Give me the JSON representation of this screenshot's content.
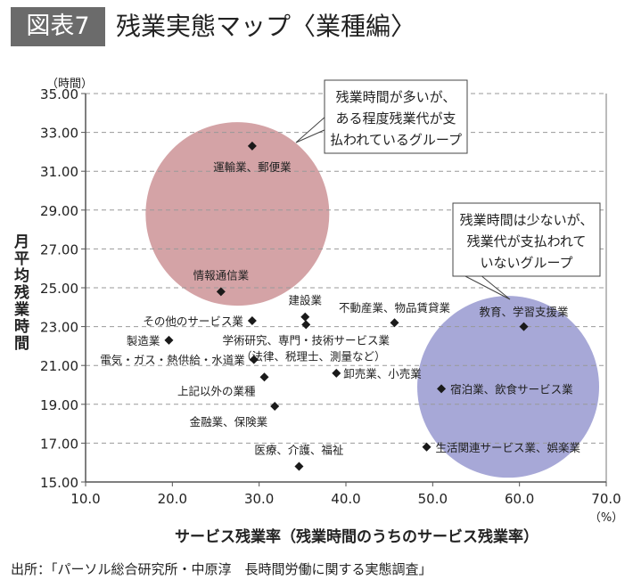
{
  "header": {
    "badge": "図表7",
    "title": "残業実態マップ〈業種編〉"
  },
  "source": "出所：「パーソル総合研究所・中原淳　長時間労働に関する実態調査」",
  "colors": {
    "high_group": "#d4a3a6",
    "low_group": "#a7a8d7",
    "marker": "#1a1a1a"
  },
  "chart_data": {
    "type": "scatter",
    "title": "残業実態マップ〈業種編〉",
    "xlabel": "サービス残業率（残業時間のうちのサービス残業率）",
    "ylabel": "月平均残業時間",
    "y_unit": "（時間）",
    "x_unit": "（%）",
    "xlim": [
      10,
      70
    ],
    "ylim": [
      15,
      35
    ],
    "x_ticks": [
      "10.0",
      "20.0",
      "30.0",
      "40.0",
      "50.0",
      "60.0",
      "70.0"
    ],
    "y_ticks": [
      "15.00",
      "17.00",
      "19.00",
      "21.00",
      "23.00",
      "25.00",
      "27.00",
      "29.00",
      "31.00",
      "33.00",
      "35.00"
    ],
    "grid": "horizontal dashed",
    "points": [
      {
        "label": "運輸業、郵便業",
        "x": 29.2,
        "y": 32.3
      },
      {
        "label": "情報通信業",
        "x": 25.6,
        "y": 24.8
      },
      {
        "label": "その他のサービス業",
        "x": 29.2,
        "y": 23.3
      },
      {
        "label": "建設業",
        "x": 35.3,
        "y": 23.5
      },
      {
        "label": "学術研究、専門・技術サービス業",
        "label2": "（法律、税理士、測量など）",
        "x": 35.4,
        "y": 23.1
      },
      {
        "label": "不動産業、物品賃貸業",
        "x": 45.6,
        "y": 23.2
      },
      {
        "label": "教育、学習支援業",
        "x": 60.5,
        "y": 23.0
      },
      {
        "label": "製造業",
        "x": 19.6,
        "y": 22.3
      },
      {
        "label": "電気・ガス・熱供給・水道業",
        "x": 29.4,
        "y": 21.3
      },
      {
        "label": "卸売業、小売業",
        "x": 38.9,
        "y": 20.6
      },
      {
        "label": "上記以外の業種",
        "x": 30.6,
        "y": 20.4
      },
      {
        "label": "宿泊業、飲食サービス業",
        "x": 51.0,
        "y": 19.8
      },
      {
        "label": "金融業、保険業",
        "x": 31.8,
        "y": 18.9
      },
      {
        "label": "生活関連サービス業、娯楽業",
        "x": 49.3,
        "y": 16.8
      },
      {
        "label": "医療、介護、福祉",
        "x": 34.6,
        "y": 15.8
      }
    ],
    "groups": [
      {
        "name": "high",
        "cx": 27.5,
        "cy": 28.8,
        "note": [
          "残業時間が多いが、",
          "ある程度残業代が支",
          "払われているグループ"
        ]
      },
      {
        "name": "low",
        "cx": 58.7,
        "cy": 19.9,
        "note": [
          "残業時間は少ないが、",
          "残業代が支払われて",
          "いないグループ"
        ]
      }
    ]
  }
}
